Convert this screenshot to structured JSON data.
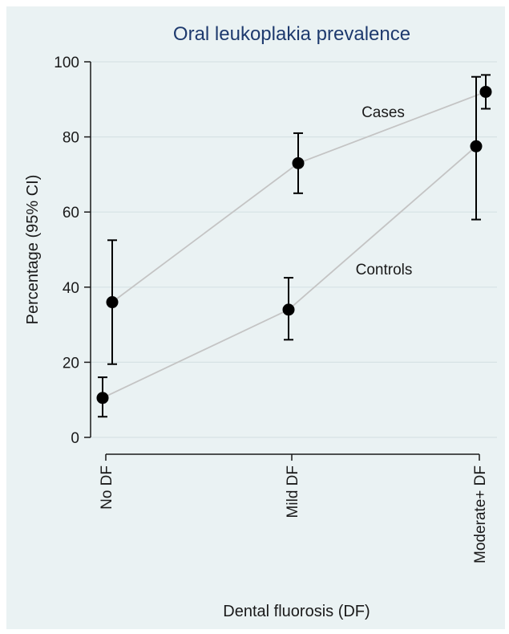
{
  "chart_data": {
    "type": "scatter",
    "title": "Oral leukoplakia prevalence",
    "xlabel": "Dental fluorosis (DF)",
    "ylabel": "Percentage (95% CI)",
    "categories": [
      "No DF",
      "Mild DF",
      "Moderate+ DF"
    ],
    "ylim": [
      0,
      100
    ],
    "yticks": [
      0,
      20,
      40,
      60,
      80,
      100
    ],
    "grid": true,
    "colors": {
      "background": "#eaf2f3",
      "grid": "#d6e2e4",
      "connector": "#c4c4c4",
      "marker": "#000000",
      "title": "#1e3a6e"
    },
    "series": [
      {
        "name": "Cases",
        "values": [
          36,
          73,
          92
        ],
        "ci_low": [
          19.5,
          65,
          87.5
        ],
        "ci_high": [
          52.5,
          81,
          96.5
        ]
      },
      {
        "name": "Controls",
        "values": [
          10.5,
          34,
          77.5
        ],
        "ci_low": [
          5.5,
          26,
          58
        ],
        "ci_high": [
          16,
          42.5,
          96
        ]
      }
    ]
  }
}
